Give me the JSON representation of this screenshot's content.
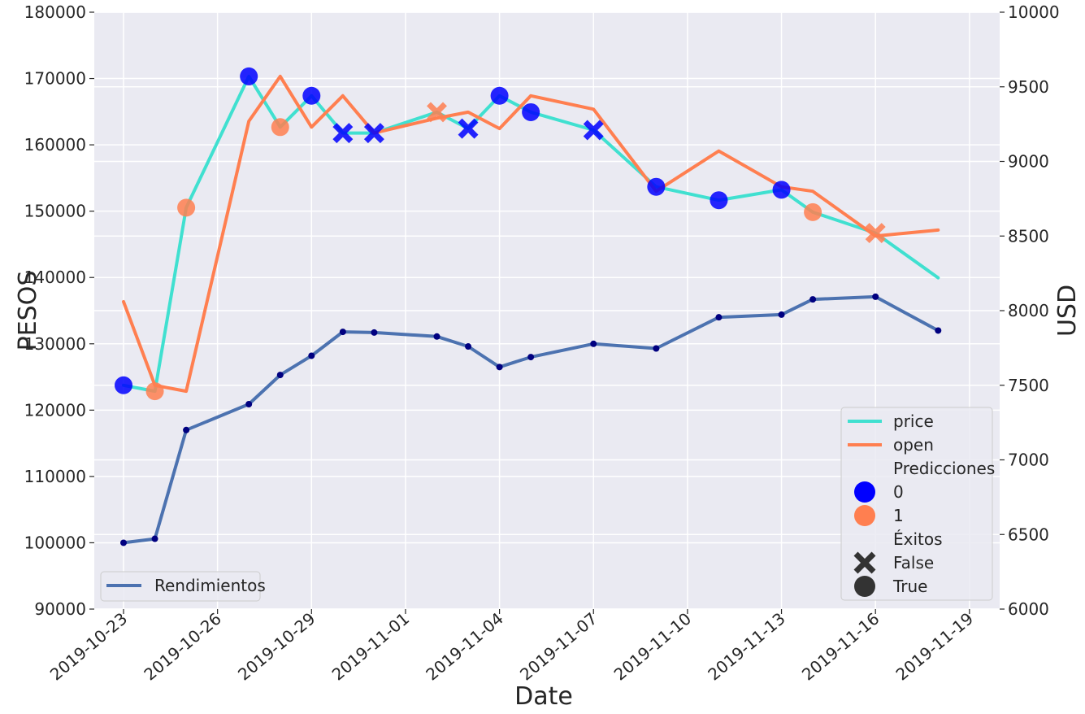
{
  "chart_data": {
    "type": "line",
    "xlabel": "Date",
    "ylabel_left": "PESOS",
    "ylabel_right": "USD",
    "x_ticks": [
      "2019-10-23",
      "2019-10-26",
      "2019-10-29",
      "2019-11-01",
      "2019-11-04",
      "2019-11-07",
      "2019-11-10",
      "2019-11-13",
      "2019-11-16",
      "2019-11-19"
    ],
    "ylim_left": [
      90000,
      180000
    ],
    "yticks_left": [
      90000,
      100000,
      110000,
      120000,
      130000,
      140000,
      150000,
      160000,
      170000,
      180000
    ],
    "ylim_right": [
      6000,
      10000
    ],
    "yticks_right": [
      6000,
      6500,
      7000,
      7500,
      8000,
      8500,
      9000,
      9500,
      10000
    ],
    "grid": true,
    "price_dates": [
      "2019-10-23",
      "2019-10-24",
      "2019-10-25",
      "2019-10-27",
      "2019-10-28",
      "2019-10-29",
      "2019-10-30",
      "2019-10-31",
      "2019-11-02",
      "2019-11-03",
      "2019-11-04",
      "2019-11-05",
      "2019-11-07",
      "2019-11-09",
      "2019-11-11",
      "2019-11-13",
      "2019-11-14",
      "2019-11-16",
      "2019-11-18"
    ],
    "series": [
      {
        "name": "price",
        "axis": "right",
        "color": "#40e0d0",
        "values": [
          7500,
          7460,
          8690,
          9570,
          9230,
          9440,
          9190,
          9190,
          9330,
          9220,
          9440,
          9330,
          9210,
          8830,
          8740,
          8810,
          8660,
          8520,
          8220
        ]
      },
      {
        "name": "open",
        "axis": "right",
        "color": "#ff7f50",
        "values": [
          8060,
          7500,
          7460,
          9270,
          9570,
          9230,
          9440,
          9190,
          9290,
          9330,
          9220,
          9440,
          9350,
          8800,
          9070,
          8830,
          8800,
          8500,
          8540
        ]
      },
      {
        "name": "Rendimientos",
        "axis": "left",
        "color": "#4c72b0",
        "marker_color": "#000080",
        "dates": [
          "2019-10-23",
          "2019-10-24",
          "2019-10-25",
          "2019-10-27",
          "2019-10-28",
          "2019-10-29",
          "2019-10-30",
          "2019-10-31",
          "2019-11-02",
          "2019-11-03",
          "2019-11-04",
          "2019-11-05",
          "2019-11-07",
          "2019-11-09",
          "2019-11-11",
          "2019-11-13",
          "2019-11-14",
          "2019-11-16",
          "2019-11-18"
        ],
        "values": [
          100000,
          100600,
          117000,
          120900,
          125300,
          128200,
          131800,
          131700,
          131100,
          129600,
          126500,
          128000,
          130000,
          129300,
          134000,
          134400,
          136700,
          137100,
          132000
        ]
      }
    ],
    "predictions": [
      {
        "date": "2019-10-23",
        "value": 7500,
        "pred": 0,
        "exito": true
      },
      {
        "date": "2019-10-24",
        "value": 7460,
        "pred": 1,
        "exito": true
      },
      {
        "date": "2019-10-25",
        "value": 8690,
        "pred": 1,
        "exito": true
      },
      {
        "date": "2019-10-27",
        "value": 9570,
        "pred": 0,
        "exito": true
      },
      {
        "date": "2019-10-28",
        "value": 9230,
        "pred": 1,
        "exito": true
      },
      {
        "date": "2019-10-29",
        "value": 9440,
        "pred": 0,
        "exito": true
      },
      {
        "date": "2019-10-30",
        "value": 9190,
        "pred": 0,
        "exito": false
      },
      {
        "date": "2019-10-31",
        "value": 9190,
        "pred": 0,
        "exito": false
      },
      {
        "date": "2019-11-02",
        "value": 9330,
        "pred": 1,
        "exito": false
      },
      {
        "date": "2019-11-03",
        "value": 9220,
        "pred": 0,
        "exito": false
      },
      {
        "date": "2019-11-04",
        "value": 9440,
        "pred": 0,
        "exito": true
      },
      {
        "date": "2019-11-05",
        "value": 9330,
        "pred": 0,
        "exito": true
      },
      {
        "date": "2019-11-07",
        "value": 9210,
        "pred": 0,
        "exito": false
      },
      {
        "date": "2019-11-09",
        "value": 8830,
        "pred": 0,
        "exito": true
      },
      {
        "date": "2019-11-11",
        "value": 8740,
        "pred": 0,
        "exito": true
      },
      {
        "date": "2019-11-13",
        "value": 8810,
        "pred": 0,
        "exito": true
      },
      {
        "date": "2019-11-14",
        "value": 8660,
        "pred": 1,
        "exito": true
      },
      {
        "date": "2019-11-16",
        "value": 8520,
        "pred": 1,
        "exito": false
      }
    ],
    "pred_colors": {
      "0": "#0000ff",
      "1": "#ff7f50"
    },
    "legend_right": {
      "placement": "lower-right",
      "series_entries": [
        {
          "label": "price",
          "color": "#40e0d0"
        },
        {
          "label": "open",
          "color": "#ff7f50"
        }
      ],
      "hue_title": "Predicciones",
      "hue_entries": [
        {
          "label": "0",
          "color": "#0000ff"
        },
        {
          "label": "1",
          "color": "#ff7f50"
        }
      ],
      "style_title": "Éxitos",
      "style_entries": [
        {
          "label": "False",
          "marker": "x"
        },
        {
          "label": "True",
          "marker": "circle"
        }
      ]
    },
    "legend_left": {
      "placement": "lower-left",
      "label": "Rendimientos",
      "color": "#4c72b0"
    }
  }
}
